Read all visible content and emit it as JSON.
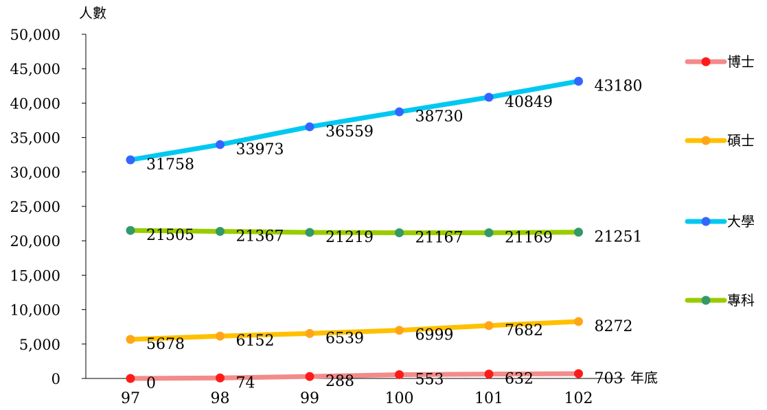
{
  "chart_data": {
    "type": "line",
    "x": [
      "97",
      "98",
      "99",
      "100",
      "101",
      "102"
    ],
    "ylabel": "人數",
    "xlabel": "年底",
    "ylim": [
      0,
      50000
    ],
    "yticks": [
      "0",
      "5,000",
      "10,000",
      "15,000",
      "20,000",
      "25,000",
      "30,000",
      "35,000",
      "40,000",
      "45,000",
      "50,000"
    ],
    "grid": false,
    "legend_position": "right",
    "series": [
      {
        "name": "博士",
        "color": "#f48a8a",
        "marker": "#ff1a1a",
        "values": [
          0,
          74,
          288,
          553,
          632,
          703
        ]
      },
      {
        "name": "碩士",
        "color": "#ffc000",
        "marker": "#ffa51a",
        "values": [
          5678,
          6152,
          6539,
          6999,
          7682,
          8272
        ]
      },
      {
        "name": "大學",
        "color": "#00c8f0",
        "marker": "#3366ff",
        "values": [
          31758,
          33973,
          36559,
          38730,
          40849,
          43180
        ]
      },
      {
        "name": "專科",
        "color": "#99cc00",
        "marker": "#339966",
        "values": [
          21505,
          21367,
          21219,
          21167,
          21169,
          21251
        ]
      }
    ]
  }
}
